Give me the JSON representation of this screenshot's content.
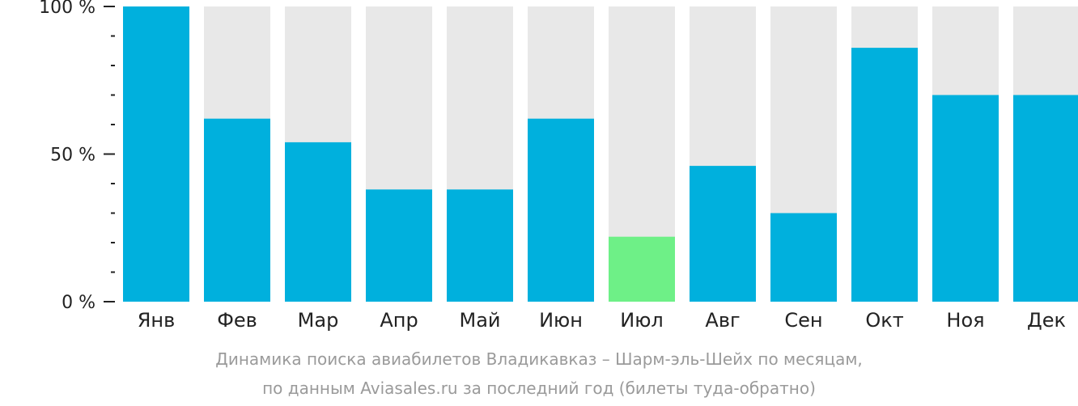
{
  "chart_data": {
    "type": "bar",
    "categories": [
      "Янв",
      "Фев",
      "Мар",
      "Апр",
      "Май",
      "Июн",
      "Июл",
      "Авг",
      "Сен",
      "Окт",
      "Ноя",
      "Дек"
    ],
    "values": [
      100,
      62,
      54,
      38,
      38,
      62,
      22,
      46,
      30,
      86,
      70,
      70
    ],
    "ylim": [
      0,
      100
    ],
    "yticks": [
      {
        "value": 100,
        "label": "100 %"
      },
      {
        "value": 50,
        "label": "50 %"
      },
      {
        "value": 0,
        "label": "0 %"
      }
    ],
    "minor_tick_step": 10,
    "highlight_index": 6,
    "colors": {
      "bar": "#00b0dd",
      "highlight": "#6ef087",
      "track": "#e8e8e8",
      "axis": "#222222"
    },
    "legend": "none",
    "grid": false
  },
  "caption": {
    "line1": "Динамика поиска авиабилетов Владикавказ – Шарм-эль-Шейх по месяцам,",
    "line2": "по данным Aviasales.ru за последний год (билеты туда-обратно)"
  }
}
